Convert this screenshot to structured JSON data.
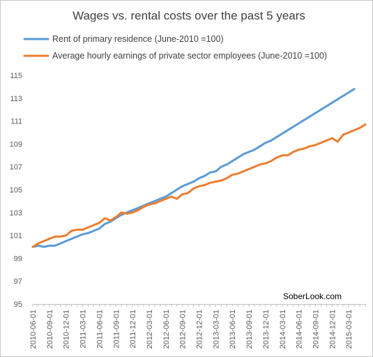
{
  "chart_data": {
    "type": "line",
    "title": "Wages vs. rental costs over the past 5 years",
    "watermark": "SoberLook.com",
    "xlabel": "",
    "ylabel": "",
    "ylim": [
      95,
      115
    ],
    "yticks": [
      95,
      97,
      99,
      101,
      103,
      105,
      107,
      109,
      111,
      113,
      115
    ],
    "grid": false,
    "legend_position": "top-left",
    "x_tick_labels": [
      "2010-06-01",
      "2010-09-01",
      "2010-12-01",
      "2011-03-01",
      "2011-06-01",
      "2011-09-01",
      "2011-12-01",
      "2012-03-01",
      "2012-06-01",
      "2012-09-01",
      "2012-12-01",
      "2013-03-01",
      "2013-06-01",
      "2013-09-01",
      "2013-12-01",
      "2014-03-01",
      "2014-06-01",
      "2014-09-01",
      "2014-12-01",
      "2015-03-01"
    ],
    "x": [
      "2010-06",
      "2010-07",
      "2010-08",
      "2010-09",
      "2010-10",
      "2010-11",
      "2010-12",
      "2011-01",
      "2011-02",
      "2011-03",
      "2011-04",
      "2011-05",
      "2011-06",
      "2011-07",
      "2011-08",
      "2011-09",
      "2011-10",
      "2011-11",
      "2011-12",
      "2012-01",
      "2012-02",
      "2012-03",
      "2012-04",
      "2012-05",
      "2012-06",
      "2012-07",
      "2012-08",
      "2012-09",
      "2012-10",
      "2012-11",
      "2012-12",
      "2013-01",
      "2013-02",
      "2013-03",
      "2013-04",
      "2013-05",
      "2013-06",
      "2013-07",
      "2013-08",
      "2013-09",
      "2013-10",
      "2013-11",
      "2013-12",
      "2014-01",
      "2014-02",
      "2014-03",
      "2014-04",
      "2014-05",
      "2014-06",
      "2014-07",
      "2014-08",
      "2014-09",
      "2014-10",
      "2014-11",
      "2014-12",
      "2015-01",
      "2015-02",
      "2015-03",
      "2015-04",
      "2015-05",
      "2015-06"
    ],
    "series": [
      {
        "name": "Rent of primary residence (June-2010 =100)",
        "color": "#5b9bd5",
        "values": [
          100.0,
          100.1,
          100.0,
          100.1,
          100.1,
          100.3,
          100.5,
          100.7,
          100.9,
          101.1,
          101.2,
          101.4,
          101.6,
          102.0,
          102.2,
          102.5,
          102.8,
          103.0,
          103.2,
          103.4,
          103.6,
          103.8,
          104.0,
          104.2,
          104.4,
          104.7,
          105.0,
          105.3,
          105.5,
          105.7,
          106.0,
          106.2,
          106.5,
          106.6,
          107.0,
          107.2,
          107.5,
          107.8,
          108.1,
          108.3,
          108.5,
          108.8,
          109.1,
          109.3,
          109.6,
          109.9,
          110.2,
          110.5,
          110.8,
          111.1,
          111.4,
          111.7,
          112.0,
          112.3,
          112.6,
          112.9,
          113.2,
          113.5,
          113.8,
          null,
          null
        ]
      },
      {
        "name": "Average hourly earnings of private sector employees (June-2010 =100)",
        "color": "#ed7d31",
        "values": [
          100.0,
          100.3,
          100.5,
          100.7,
          100.9,
          100.9,
          101.0,
          101.4,
          101.5,
          101.5,
          101.7,
          101.9,
          102.1,
          102.5,
          102.3,
          102.6,
          103.0,
          102.9,
          103.0,
          103.2,
          103.5,
          103.7,
          103.8,
          104.0,
          104.2,
          104.4,
          104.2,
          104.6,
          104.7,
          105.1,
          105.3,
          105.4,
          105.6,
          105.7,
          105.8,
          106.0,
          106.3,
          106.4,
          106.6,
          106.8,
          107.0,
          107.2,
          107.3,
          107.5,
          107.8,
          108.0,
          108.0,
          108.3,
          108.5,
          108.6,
          108.8,
          108.9,
          109.1,
          109.3,
          109.5,
          109.2,
          109.8,
          110.0,
          110.2,
          110.4,
          110.7
        ]
      }
    ]
  }
}
